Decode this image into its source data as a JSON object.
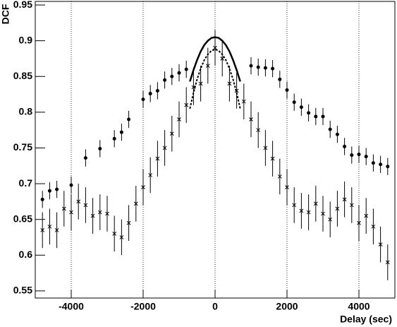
{
  "chart_data": {
    "type": "scatter",
    "xlabel": "Delay (sec)",
    "ylabel": "DCF",
    "xlim": [
      -5000,
      5000
    ],
    "ylim": [
      0.54,
      0.955
    ],
    "xticks": [
      -4000,
      -2000,
      0,
      2000,
      4000
    ],
    "yticks": [
      0.55,
      0.6,
      0.65,
      0.7,
      0.75,
      0.8,
      0.85,
      0.9,
      0.95
    ],
    "grid": "x",
    "color": "#000000",
    "series": [
      {
        "marker": "circle",
        "error": 0.012,
        "x": [
          -4800,
          -4600,
          -4400,
          -4000,
          -3600,
          -3200,
          -2800,
          -2600,
          -2400,
          -2000,
          -1800,
          -1600,
          -1400,
          -1200,
          -1000,
          -800,
          1000,
          1200,
          1400,
          1600,
          1800,
          2000,
          2200,
          2400,
          2600,
          2800,
          3000,
          3200,
          3400,
          3600,
          3800,
          4000,
          4200,
          4400,
          4600,
          4800
        ],
        "values": [
          0.678,
          0.69,
          0.692,
          0.698,
          0.736,
          0.749,
          0.763,
          0.772,
          0.79,
          0.818,
          0.826,
          0.83,
          0.845,
          0.85,
          0.855,
          0.86,
          0.865,
          0.863,
          0.862,
          0.861,
          0.846,
          0.831,
          0.814,
          0.807,
          0.799,
          0.794,
          0.794,
          0.776,
          0.769,
          0.752,
          0.74,
          0.741,
          0.738,
          0.729,
          0.727,
          0.724
        ]
      },
      {
        "marker": "cross",
        "error": 0.025,
        "x": [
          -4800,
          -4600,
          -4400,
          -4200,
          -4000,
          -3800,
          -3600,
          -3400,
          -3200,
          -3000,
          -2800,
          -2600,
          -2400,
          -2200,
          -2000,
          -1800,
          -1600,
          -1400,
          -1200,
          -1000,
          -800,
          -600,
          -400,
          -200,
          0,
          200,
          400,
          600,
          800,
          1000,
          1200,
          1400,
          1600,
          1800,
          2000,
          2200,
          2400,
          2600,
          2800,
          3000,
          3200,
          3400,
          3600,
          3800,
          4000,
          4200,
          4400,
          4600,
          4800
        ],
        "values": [
          0.635,
          0.64,
          0.635,
          0.665,
          0.66,
          0.675,
          0.67,
          0.655,
          0.66,
          0.658,
          0.63,
          0.625,
          0.645,
          0.672,
          0.695,
          0.712,
          0.735,
          0.75,
          0.77,
          0.79,
          0.81,
          0.835,
          0.84,
          0.865,
          0.89,
          0.875,
          0.84,
          0.83,
          0.815,
          0.79,
          0.775,
          0.75,
          0.735,
          0.71,
          0.695,
          0.67,
          0.662,
          0.66,
          0.672,
          0.658,
          0.65,
          0.665,
          0.678,
          0.67,
          0.645,
          0.655,
          0.64,
          0.615,
          0.59
        ]
      },
      {
        "marker": "line",
        "dash": "solid",
        "x": [
          -700,
          -600,
          -500,
          -400,
          -300,
          -200,
          -100,
          0,
          100,
          200,
          300,
          400,
          500,
          600,
          700
        ],
        "values": [
          0.843,
          0.859,
          0.873,
          0.885,
          0.894,
          0.9,
          0.904,
          0.905,
          0.904,
          0.9,
          0.894,
          0.885,
          0.873,
          0.859,
          0.843
        ]
      },
      {
        "marker": "line",
        "dash": "dashed",
        "x": [
          -700,
          -600,
          -500,
          -400,
          -300,
          -200,
          -100,
          0,
          100,
          200,
          300,
          400,
          500,
          600,
          700
        ],
        "values": [
          0.805,
          0.827,
          0.846,
          0.861,
          0.873,
          0.881,
          0.886,
          0.888,
          0.886,
          0.881,
          0.873,
          0.861,
          0.846,
          0.827,
          0.805
        ]
      }
    ]
  }
}
